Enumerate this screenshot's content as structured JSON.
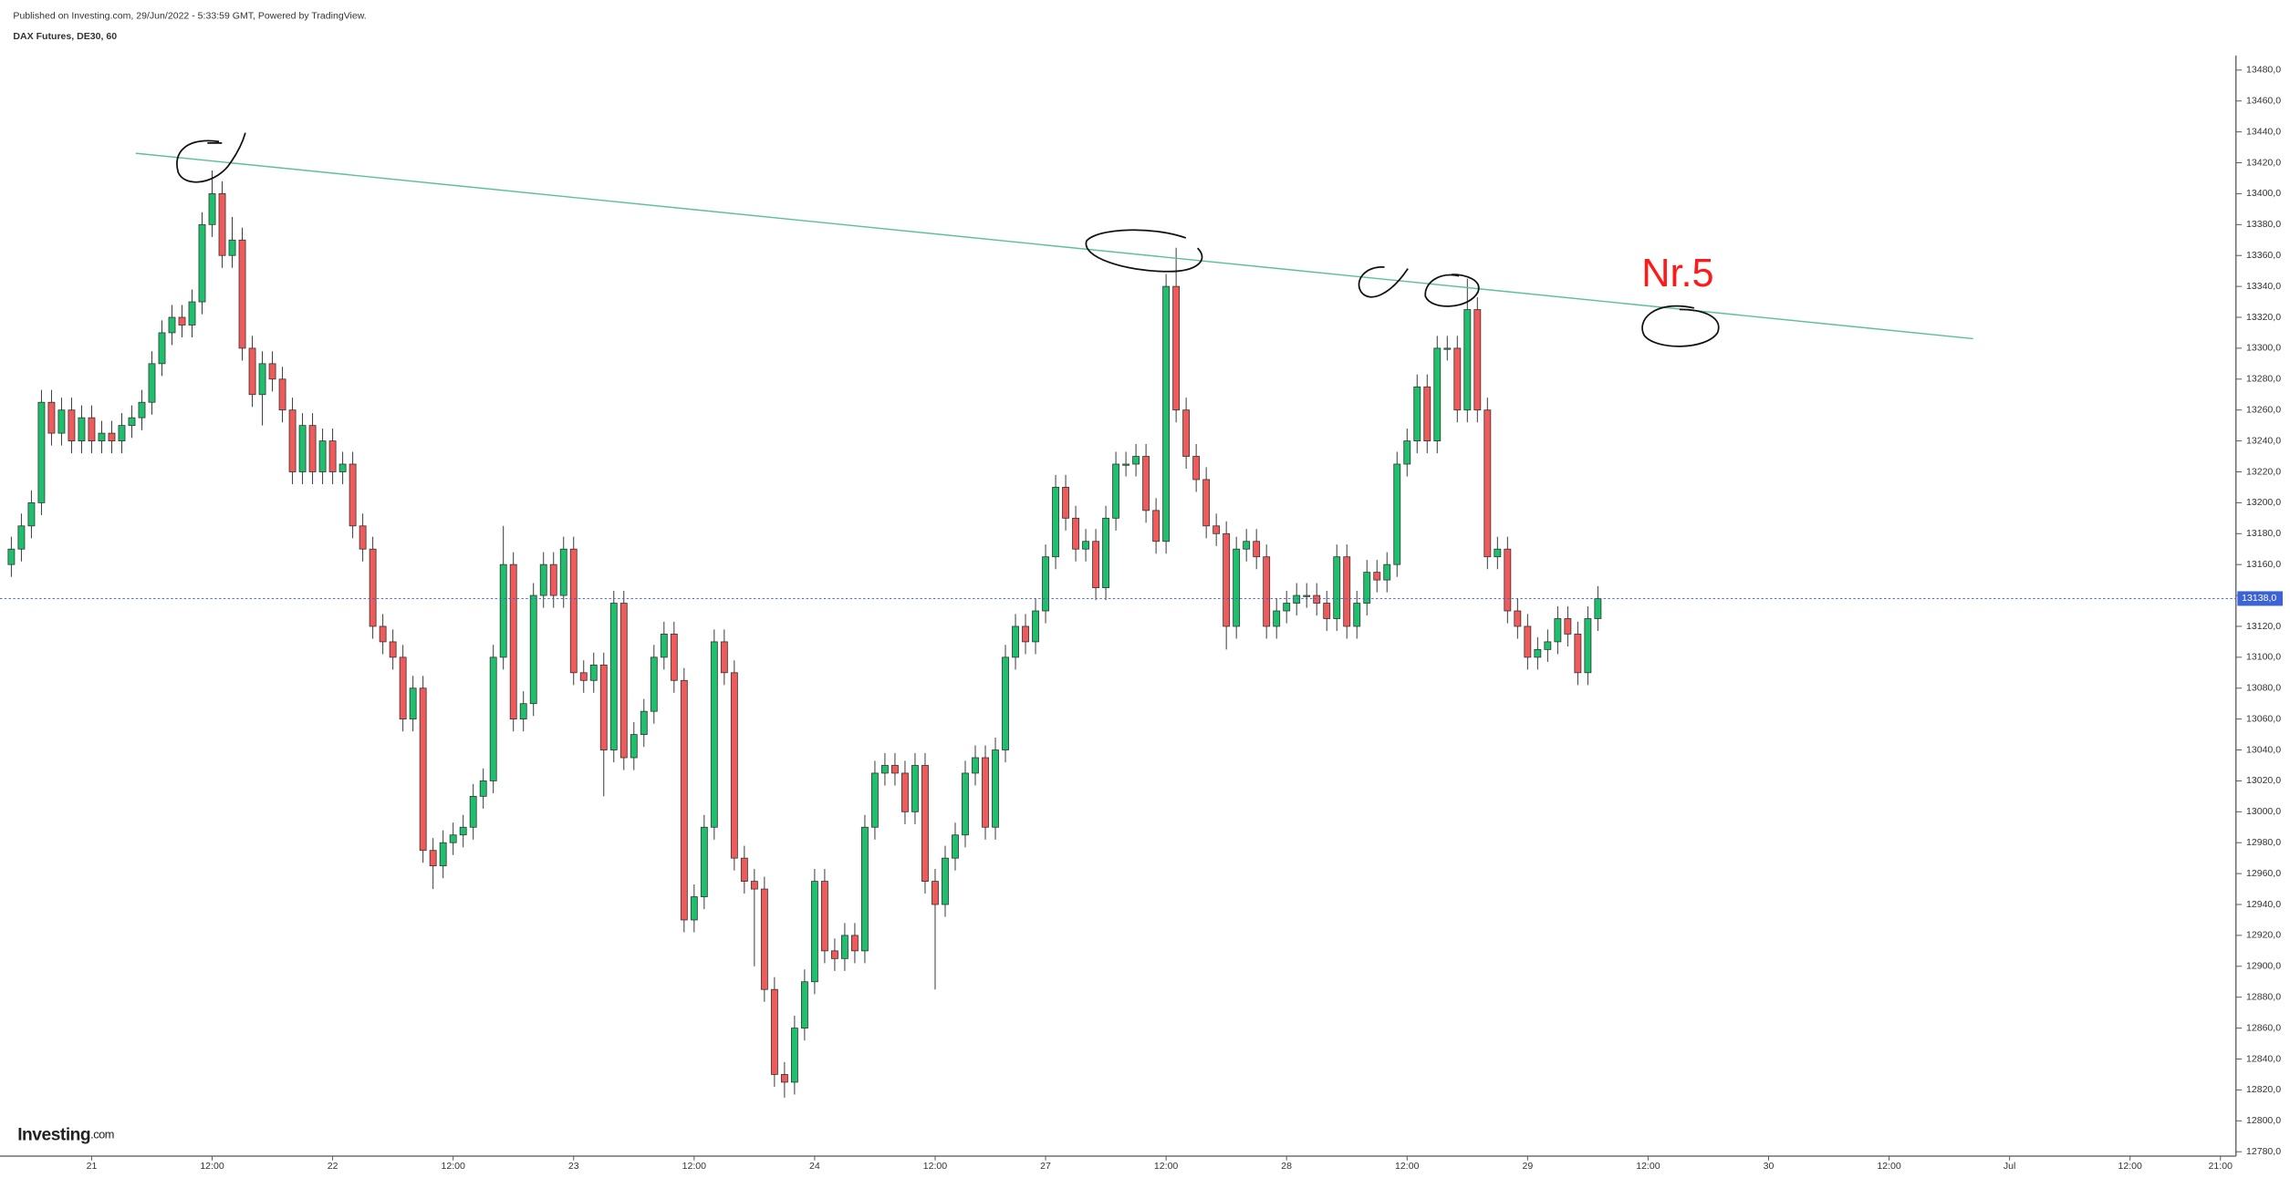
{
  "header": {
    "published": "Published on Investing.com, 29/Jun/2022 - 5:33:59 GMT, Powered by TradingView.",
    "logo": "Investing",
    "logo_suffix": ".com"
  },
  "chart_data": {
    "type": "candlestick",
    "title": "DAX Futures, DE30, 60",
    "annotation": "Nr.5",
    "up_color": "#1ec06e",
    "down_color": "#ef5b5b",
    "last_price": {
      "value": 13138,
      "label": "13138,0"
    },
    "xlim": [
      -0.4,
      221.4
    ],
    "ylim": [
      12780,
      13480
    ],
    "xticks": [
      {
        "value": 8,
        "label": "21"
      },
      {
        "value": 20,
        "label": "12:00"
      },
      {
        "value": 32,
        "label": "22"
      },
      {
        "value": 44,
        "label": "12:00"
      },
      {
        "value": 56,
        "label": "23"
      },
      {
        "value": 68,
        "label": "12:00"
      },
      {
        "value": 80,
        "label": "24"
      },
      {
        "value": 92,
        "label": "12:00"
      },
      {
        "value": 103,
        "label": "27"
      },
      {
        "value": 115,
        "label": "12:00"
      },
      {
        "value": 127,
        "label": "28"
      },
      {
        "value": 139,
        "label": "12:00"
      },
      {
        "value": 151,
        "label": "29"
      },
      {
        "value": 163,
        "label": "12:00"
      },
      {
        "value": 175,
        "label": "30"
      },
      {
        "value": 187,
        "label": "12:00"
      },
      {
        "value": 199,
        "label": "Jul"
      },
      {
        "value": 211,
        "label": "12:00"
      },
      {
        "value": 220,
        "label": "21:00"
      }
    ],
    "yticks": [
      {
        "value": 12780,
        "label": "12780,0"
      },
      {
        "value": 12800,
        "label": "12800,0"
      },
      {
        "value": 12820,
        "label": "12820,0"
      },
      {
        "value": 12840,
        "label": "12840,0"
      },
      {
        "value": 12860,
        "label": "12860,0"
      },
      {
        "value": 12880,
        "label": "12880,0"
      },
      {
        "value": 12900,
        "label": "12900,0"
      },
      {
        "value": 12920,
        "label": "12920,0"
      },
      {
        "value": 12940,
        "label": "12940,0"
      },
      {
        "value": 12960,
        "label": "12960,0"
      },
      {
        "value": 12980,
        "label": "12980,0"
      },
      {
        "value": 13000,
        "label": "13000,0"
      },
      {
        "value": 13020,
        "label": "13020,0"
      },
      {
        "value": 13040,
        "label": "13040,0"
      },
      {
        "value": 13060,
        "label": "13060,0"
      },
      {
        "value": 13080,
        "label": "13080,0"
      },
      {
        "value": 13100,
        "label": "13100,0"
      },
      {
        "value": 13120,
        "label": "13120,0"
      },
      {
        "value": 13140,
        "label": "13140,0"
      },
      {
        "value": 13160,
        "label": "13160,0"
      },
      {
        "value": 13180,
        "label": "13180,0"
      },
      {
        "value": 13200,
        "label": "13200,0"
      },
      {
        "value": 13220,
        "label": "13220,0"
      },
      {
        "value": 13240,
        "label": "13240,0"
      },
      {
        "value": 13260,
        "label": "13260,0"
      },
      {
        "value": 13280,
        "label": "13280,0"
      },
      {
        "value": 13300,
        "label": "13300,0"
      },
      {
        "value": 13320,
        "label": "13320,0"
      },
      {
        "value": 13340,
        "label": "13340,0"
      },
      {
        "value": 13360,
        "label": "13360,0"
      },
      {
        "value": 13380,
        "label": "13380,0"
      },
      {
        "value": 13400,
        "label": "13400,0"
      },
      {
        "value": 13420,
        "label": "13420,0"
      },
      {
        "value": 13440,
        "label": "13440,0"
      },
      {
        "value": 13460,
        "label": "13460,0"
      },
      {
        "value": 13480,
        "label": "13480,0"
      }
    ],
    "open": [
      13160,
      13170,
      13185,
      13200,
      13265,
      13245,
      13260,
      13240,
      13255,
      13240,
      13245,
      13240,
      13250,
      13255,
      13265,
      13290,
      13310,
      13320,
      13315,
      13330,
      13380,
      13400,
      13360,
      13370,
      13300,
      13270,
      13290,
      13280,
      13260,
      13220,
      13250,
      13220,
      13240,
      13220,
      13225,
      13185,
      13170,
      13120,
      13110,
      13100,
      13060,
      13080,
      12975,
      12965,
      12980,
      12985,
      12990,
      13010,
      13020,
      13100,
      13160,
      13060,
      13070,
      13140,
      13160,
      13140,
      13170,
      13090,
      13085,
      13095,
      13040,
      13135,
      13035,
      13050,
      13065,
      13100,
      13115,
      13085,
      12930,
      12945,
      12990,
      13110,
      13090,
      12970,
      12955,
      12950,
      12885,
      12830,
      12825,
      12860,
      12890,
      12955,
      12910,
      12905,
      12920,
      12910,
      12990,
      13025,
      13030,
      13025,
      13000,
      13030,
      12955,
      12940,
      12970,
      12985,
      13025,
      13035,
      12990,
      13040,
      13100,
      13120,
      13110,
      13130,
      13165,
      13210,
      13190,
      13170,
      13175,
      13145,
      13190,
      13225,
      13225,
      13230,
      13195,
      13175,
      13340,
      13260,
      13230,
      13215,
      13185,
      13180,
      13120,
      13170,
      13175,
      13165,
      13120,
      13130,
      13135,
      13140,
      13140,
      13135,
      13125,
      13165,
      13120,
      13135,
      13155,
      13150,
      13160,
      13225,
      13240,
      13275,
      13240,
      13300,
      13300,
      13260,
      13325,
      13260,
      13165,
      13170,
      13130,
      13120,
      13100,
      13105,
      13110,
      13125,
      13115,
      13090,
      13125
    ],
    "high": [
      13178,
      13193,
      13208,
      13273,
      13273,
      13268,
      13268,
      13263,
      13263,
      13253,
      13253,
      13258,
      13263,
      13273,
      13298,
      13318,
      13328,
      13328,
      13338,
      13388,
      13415,
      13408,
      13385,
      13378,
      13308,
      13298,
      13298,
      13288,
      13268,
      13258,
      13258,
      13248,
      13248,
      13233,
      13233,
      13193,
      13178,
      13128,
      13118,
      13108,
      13088,
      13088,
      12983,
      12988,
      12993,
      12998,
      13018,
      13028,
      13108,
      13185,
      13168,
      13078,
      13148,
      13168,
      13168,
      13178,
      13178,
      13098,
      13103,
      13103,
      13143,
      13143,
      13058,
      13073,
      13108,
      13123,
      13123,
      13093,
      12953,
      12998,
      13118,
      13118,
      13098,
      12978,
      12963,
      12958,
      12893,
      12838,
      12868,
      12898,
      12963,
      12963,
      12918,
      12928,
      12928,
      12998,
      13033,
      13038,
      13038,
      13033,
      13038,
      13038,
      12963,
      12978,
      12993,
      13033,
      13043,
      13043,
      13048,
      13108,
      13128,
      13128,
      13138,
      13173,
      13218,
      13218,
      13198,
      13183,
      13183,
      13198,
      13233,
      13233,
      13238,
      13238,
      13203,
      13348,
      13365,
      13268,
      13238,
      13223,
      13193,
      13188,
      13178,
      13183,
      13183,
      13173,
      13138,
      13143,
      13148,
      13148,
      13148,
      13143,
      13173,
      13173,
      13143,
      13163,
      13163,
      13168,
      13233,
      13248,
      13283,
      13283,
      13308,
      13308,
      13308,
      13345,
      13333,
      13268,
      13178,
      13178,
      13138,
      13128,
      13113,
      13118,
      13133,
      13133,
      13123,
      13133,
      13146
    ],
    "low": [
      13152,
      13162,
      13177,
      13192,
      13237,
      13237,
      13232,
      13232,
      13232,
      13232,
      13232,
      13232,
      13242,
      13247,
      13257,
      13282,
      13302,
      13307,
      13307,
      13322,
      13372,
      13352,
      13352,
      13292,
      13262,
      13250,
      13272,
      13252,
      13212,
      13212,
      13212,
      13212,
      13212,
      13212,
      13177,
      13162,
      13112,
      13102,
      13092,
      13052,
      13052,
      12967,
      12950,
      12957,
      12972,
      12977,
      12982,
      13002,
      13012,
      13092,
      13052,
      13052,
      13062,
      13132,
      13132,
      13132,
      13082,
      13077,
      13077,
      13010,
      13032,
      13027,
      13027,
      13042,
      13057,
      13092,
      13077,
      12922,
      12922,
      12937,
      12982,
      13082,
      12962,
      12947,
      12900,
      12877,
      12822,
      12815,
      12817,
      12852,
      12882,
      12902,
      12897,
      12897,
      12902,
      12902,
      12982,
      13017,
      13017,
      12992,
      12992,
      12947,
      12885,
      12932,
      12962,
      12977,
      13017,
      12982,
      12982,
      13032,
      13092,
      13102,
      13102,
      13122,
      13157,
      13182,
      13162,
      13162,
      13137,
      13137,
      13182,
      13217,
      13217,
      13187,
      13167,
      13167,
      13252,
      13222,
      13207,
      13177,
      13172,
      13105,
      13112,
      13162,
      13157,
      13112,
      13112,
      13122,
      13127,
      13132,
      13127,
      13117,
      13117,
      13112,
      13112,
      13127,
      13142,
      13142,
      13152,
      13217,
      13232,
      13232,
      13232,
      13292,
      13252,
      13252,
      13252,
      13157,
      13157,
      13122,
      13112,
      13092,
      13092,
      13097,
      13102,
      13107,
      13082,
      13082,
      13117
    ],
    "close": [
      13170,
      13185,
      13200,
      13265,
      13245,
      13260,
      13240,
      13255,
      13240,
      13245,
      13240,
      13250,
      13255,
      13265,
      13290,
      13310,
      13320,
      13315,
      13330,
      13380,
      13400,
      13360,
      13370,
      13300,
      13270,
      13290,
      13280,
      13260,
      13220,
      13250,
      13220,
      13240,
      13220,
      13225,
      13185,
      13170,
      13120,
      13110,
      13100,
      13060,
      13080,
      12975,
      12965,
      12980,
      12985,
      12990,
      13010,
      13020,
      13100,
      13160,
      13060,
      13070,
      13140,
      13160,
      13140,
      13170,
      13090,
      13085,
      13095,
      13040,
      13135,
      13035,
      13050,
      13065,
      13100,
      13115,
      13085,
      12930,
      12945,
      12990,
      13110,
      13090,
      12970,
      12955,
      12950,
      12885,
      12830,
      12825,
      12860,
      12890,
      12955,
      12910,
      12905,
      12920,
      12910,
      12990,
      13025,
      13030,
      13025,
      13000,
      13030,
      12955,
      12940,
      12970,
      12985,
      13025,
      13035,
      12990,
      13040,
      13100,
      13120,
      13110,
      13130,
      13165,
      13210,
      13190,
      13170,
      13175,
      13145,
      13190,
      13225,
      13225,
      13230,
      13195,
      13175,
      13340,
      13260,
      13230,
      13215,
      13185,
      13180,
      13120,
      13170,
      13175,
      13165,
      13120,
      13130,
      13135,
      13140,
      13140,
      13135,
      13125,
      13165,
      13120,
      13135,
      13155,
      13150,
      13160,
      13225,
      13240,
      13275,
      13240,
      13300,
      13300,
      13260,
      13325,
      13260,
      13165,
      13170,
      13130,
      13120,
      13100,
      13105,
      13110,
      13125,
      13115,
      13090,
      13125,
      13138
    ]
  }
}
